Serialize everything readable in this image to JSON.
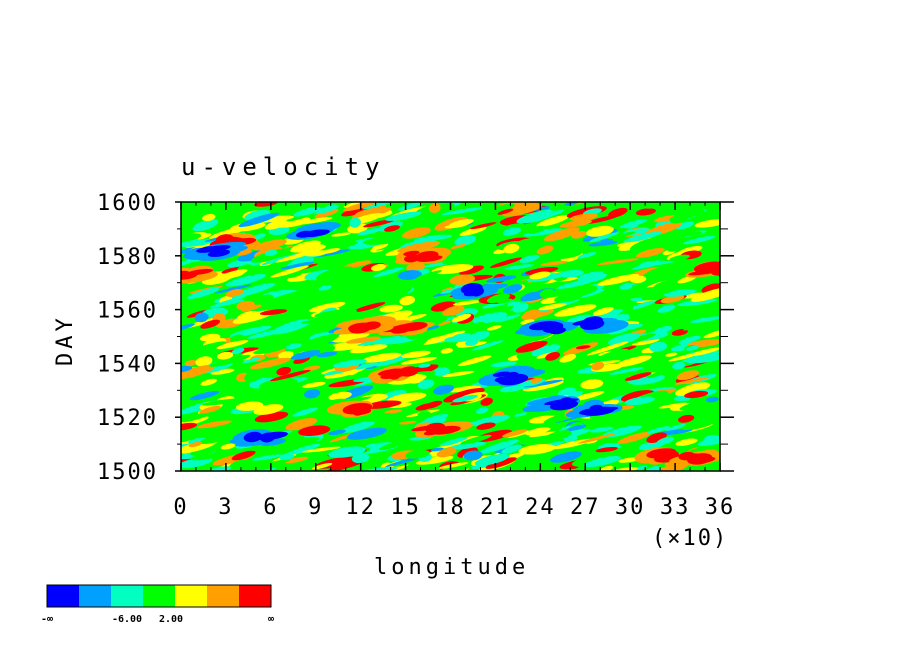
{
  "chart_data": {
    "type": "heatmap",
    "title": "u-velocity",
    "xlabel": "longitude",
    "ylabel": "DAY",
    "x_scale_note": "(×10)",
    "xlim": [
      0,
      36
    ],
    "ylim": [
      1500,
      1600
    ],
    "x_ticks": [
      "0",
      "3",
      "6",
      "9",
      "12",
      "15",
      "18",
      "21",
      "24",
      "27",
      "30",
      "33",
      "36"
    ],
    "y_ticks": [
      "1500",
      "1520",
      "1540",
      "1560",
      "1580",
      "1600"
    ],
    "colorbar": {
      "colors": [
        "#0000ff",
        "#00a0ff",
        "#00ffc0",
        "#00ff00",
        "#ffff00",
        "#ffa000",
        "#ff0000"
      ],
      "labels": [
        "-∞",
        "-6.00",
        "2.00",
        "∞"
      ]
    },
    "features": [
      {
        "x": 15,
        "y": 1553,
        "level": 6
      },
      {
        "x": 12.5,
        "y": 1554,
        "level": 6
      },
      {
        "x": 14.5,
        "y": 1536,
        "level": 6
      },
      {
        "x": 12,
        "y": 1523,
        "level": 6
      },
      {
        "x": 17,
        "y": 1515,
        "level": 6
      },
      {
        "x": 32,
        "y": 1506,
        "level": 6
      },
      {
        "x": 34.5,
        "y": 1505,
        "level": 6
      },
      {
        "x": 0.8,
        "y": 1573,
        "level": 6
      },
      {
        "x": 35.5,
        "y": 1575,
        "level": 6
      },
      {
        "x": 16,
        "y": 1580,
        "level": 6
      },
      {
        "x": 3.5,
        "y": 1585,
        "level": 6
      },
      {
        "x": 24.5,
        "y": 1553,
        "level": 0
      },
      {
        "x": 27.5,
        "y": 1555,
        "level": 0
      },
      {
        "x": 25,
        "y": 1525,
        "level": 0
      },
      {
        "x": 28,
        "y": 1523,
        "level": 0
      },
      {
        "x": 22,
        "y": 1535,
        "level": 0
      },
      {
        "x": 5.5,
        "y": 1512,
        "level": 0
      },
      {
        "x": 2,
        "y": 1582,
        "level": 0
      },
      {
        "x": 9,
        "y": 1589,
        "level": 0
      },
      {
        "x": 20,
        "y": 1567,
        "level": 0
      }
    ]
  }
}
